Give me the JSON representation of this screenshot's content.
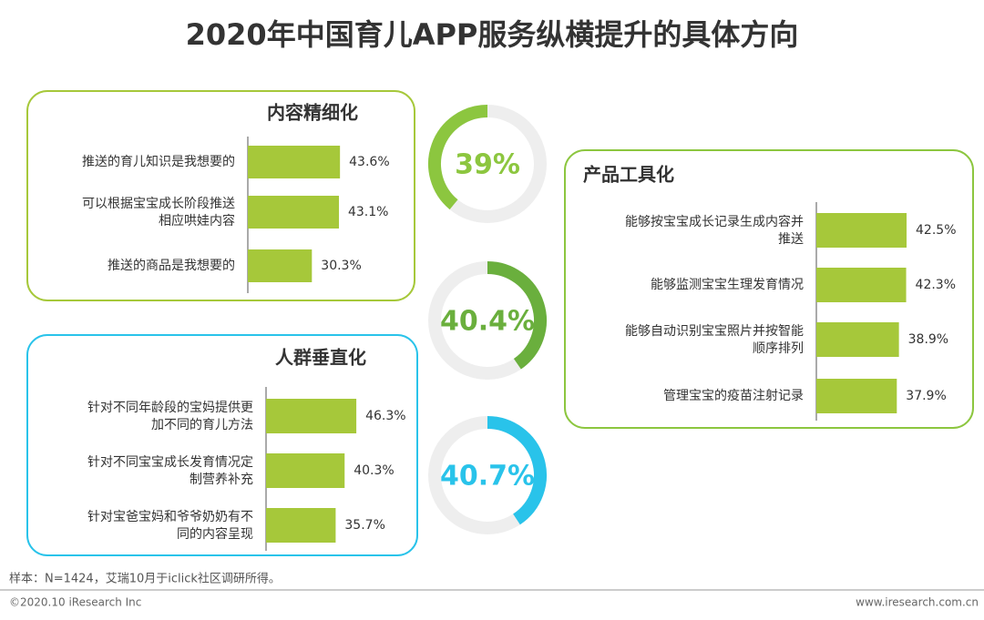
{
  "title": "2020年中国育儿APP服务纵横提升的具体方向",
  "source_note": "样本：N=1424，艾瑞10月于iclick社区调研所得。",
  "footer": {
    "copyright": "©2020.10 iResearch Inc",
    "website": "www.iresearch.com.cn"
  },
  "chart_data": [
    {
      "type": "barh",
      "title": "内容精细化",
      "categories": [
        "推送的育儿知识是我想要的",
        "可以根据宝宝成长阶段推送相应哄娃内容",
        "推送的商品是我想要的"
      ],
      "values": [
        43.6,
        43.1,
        30.3
      ],
      "value_labels": [
        "43.6%",
        "43.1%",
        "30.3%"
      ],
      "color": "#a6c83a"
    },
    {
      "type": "barh",
      "title": "人群垂直化",
      "categories": [
        "针对不同年龄段的宝妈提供更加不同的育儿方法",
        "针对不同宝宝成长发育情况定制营养补充",
        "针对宝爸宝妈和爷爷奶奶有不同的内容呈现"
      ],
      "values": [
        46.3,
        40.3,
        35.7
      ],
      "value_labels": [
        "46.3%",
        "40.3%",
        "35.7%"
      ],
      "color": "#a6c83a"
    },
    {
      "type": "barh",
      "title": "产品工具化",
      "categories": [
        "能够按宝宝成长记录生成内容并推送",
        "能够监测宝宝生理发育情况",
        "能够自动识别宝宝照片并按智能顺序排列",
        "管理宝宝的疫苗注射记录"
      ],
      "values": [
        42.5,
        42.3,
        38.9,
        37.9
      ],
      "value_labels": [
        "42.5%",
        "42.3%",
        "38.9%",
        "37.9%"
      ],
      "color": "#a6c83a"
    },
    {
      "type": "gauge",
      "values": [
        39
      ],
      "value_labels": [
        "39%"
      ],
      "color": "#8cc63f"
    },
    {
      "type": "gauge",
      "values": [
        40.4
      ],
      "value_labels": [
        "40.4%"
      ],
      "color": "#6aaf3d"
    },
    {
      "type": "gauge",
      "values": [
        40.7
      ],
      "value_labels": [
        "40.7%"
      ],
      "color": "#29c3ea"
    }
  ]
}
